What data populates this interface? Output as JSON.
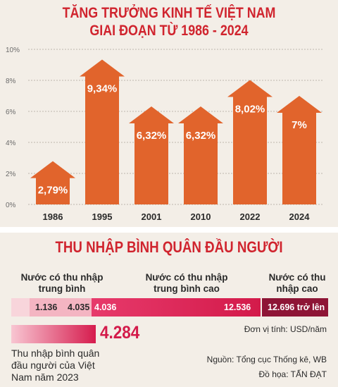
{
  "header": {
    "title_line1": "TĂNG TRƯỞNG KINH TẾ VIỆT NAM",
    "title_line2": "GIAI ĐOẠN TỪ 1986 - 2024"
  },
  "chart_data": {
    "type": "bar",
    "categories": [
      "1986",
      "1995",
      "2001",
      "2010",
      "2022",
      "2024"
    ],
    "values": [
      2.79,
      9.34,
      6.32,
      6.32,
      8.02,
      7
    ],
    "value_labels": [
      "2,79%",
      "9,34%",
      "6,32%",
      "6,32%",
      "8,02%",
      "7%"
    ],
    "y_ticks": [
      "0%",
      "2%",
      "4%",
      "6%",
      "8%",
      "10%"
    ],
    "ylim": [
      0,
      10
    ],
    "grid": true,
    "bar_color": "#e1642c"
  },
  "income": {
    "title": "THU NHẬP BÌNH QUÂN ĐẦU NGƯỜI",
    "bands": [
      {
        "label": "Nước có thu nhập trung bình"
      },
      {
        "label": "Nước có thu nhập trung bình cao"
      },
      {
        "label": "Nước có thu nhập cao"
      }
    ],
    "thresholds": [
      "1.136",
      "4.035",
      "4.036",
      "12.536",
      "12.696 trở lên"
    ],
    "unit": "Đơn vị tính: USD/năm",
    "vn_2023_value": "4.284",
    "vn_2023_label": "Thu nhập bình quân đầu người của Việt Nam năm 2023",
    "source": "Nguồn: Tổng cục Thống kê, WB",
    "credit": "Đồ họa: TẤN ĐẠT"
  }
}
